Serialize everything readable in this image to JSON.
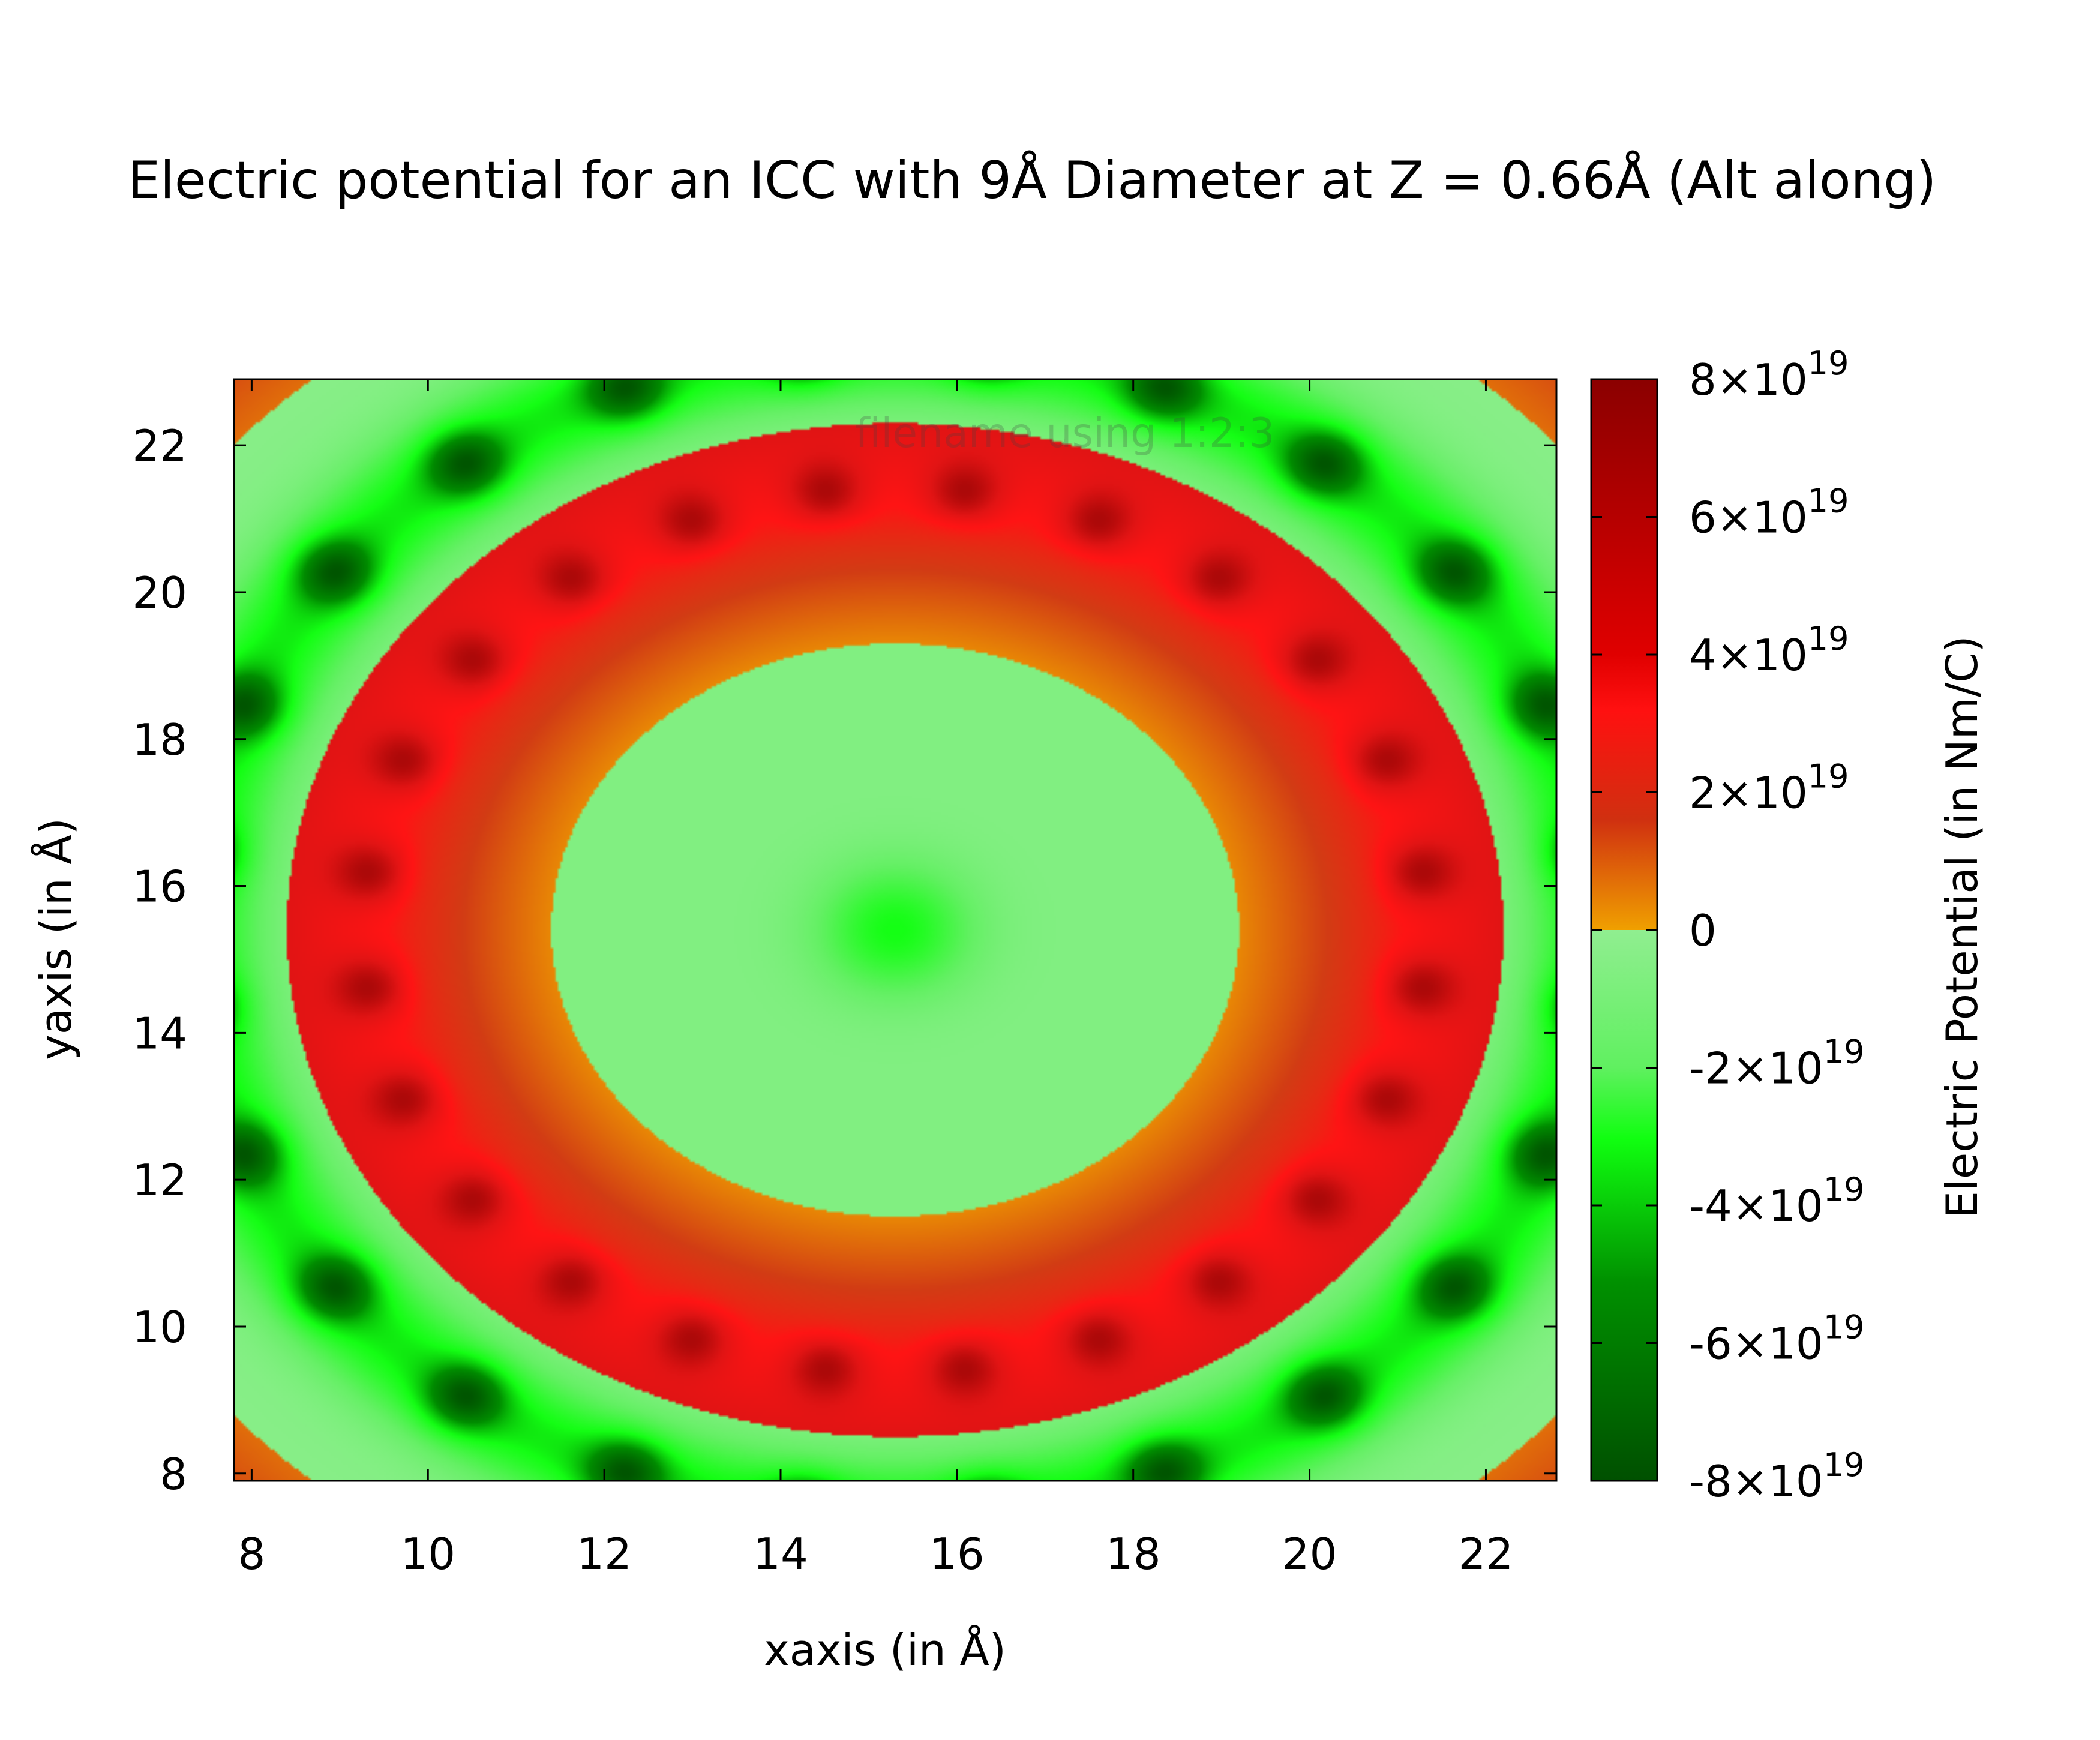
{
  "chart_data": {
    "type": "heatmap",
    "title": "Electric potential for an ICC with 9Å Diameter at Z = 0.66Å (Alt along)",
    "xlabel": "xaxis (in Å)",
    "ylabel": "yaxis (in Å)",
    "legend_label": "filename using 1:2:3",
    "colorbar_label": "Electric Potential (in Nm/C)",
    "xlim": [
      7.8,
      22.8
    ],
    "ylim": [
      7.9,
      22.9
    ],
    "x_ticks": [
      8,
      10,
      12,
      14,
      16,
      18,
      20,
      22
    ],
    "y_ticks": [
      8,
      10,
      12,
      14,
      16,
      18,
      20,
      22
    ],
    "colorbar": {
      "range": [
        -8e+19,
        8e+19
      ],
      "ticks": [
        {
          "value": 8e+19,
          "mantissa": "8×10",
          "exp": "19"
        },
        {
          "value": 6e+19,
          "mantissa": "6×10",
          "exp": "19"
        },
        {
          "value": 4e+19,
          "mantissa": "4×10",
          "exp": "19"
        },
        {
          "value": 2e+19,
          "mantissa": "2×10",
          "exp": "19"
        },
        {
          "value": 0,
          "mantissa": "0",
          "exp": ""
        },
        {
          "value": -2e+19,
          "mantissa": "-2×10",
          "exp": "19"
        },
        {
          "value": -4e+19,
          "mantissa": "-4×10",
          "exp": "19"
        },
        {
          "value": -6e+19,
          "mantissa": "-6×10",
          "exp": "19"
        },
        {
          "value": -8e+19,
          "mantissa": "-8×10",
          "exp": "19"
        }
      ]
    },
    "field": {
      "center": [
        15.3,
        15.4
      ],
      "positive_ring_radius": 6.0,
      "positive_ring_sources": 24,
      "outer_negative_ring_radius": 8.0,
      "outer_negative_ring_sources": 24
    }
  },
  "colors": {
    "dark_red": "#8b0000",
    "red": "#ff2020",
    "orange": "#f0a000",
    "light_green": "#90ee90",
    "green": "#20f020",
    "dark_green": "#006400"
  }
}
